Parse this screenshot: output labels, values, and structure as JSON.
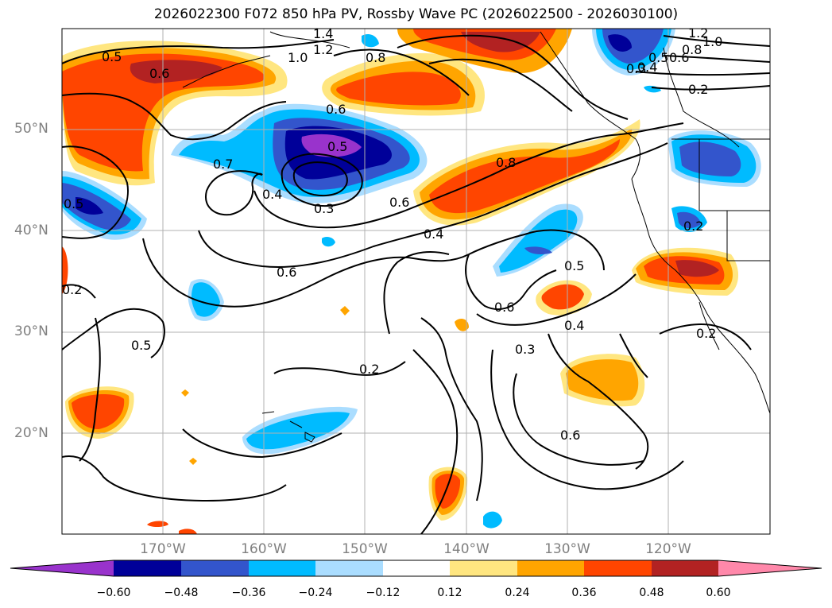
{
  "title": "2026022300 F072 850 hPa PV, Rossby Wave PC (2026022500 - 2026030100)",
  "lat_labels": [
    "50°N",
    "40°N",
    "30°N",
    "20°N"
  ],
  "lon_labels": [
    "170°W",
    "160°W",
    "150°W",
    "140°W",
    "130°W",
    "120°W"
  ],
  "colorbar": {
    "ticks": [
      "−0.60",
      "−0.48",
      "−0.36",
      "−0.24",
      "−0.12",
      "0.12",
      "0.24",
      "0.36",
      "0.48",
      "0.60"
    ],
    "colors": {
      "neg_extend": "#9933cc",
      "neg_060_048": "#000099",
      "neg_048_036": "#3355cc",
      "neg_036_024": "#00bbff",
      "neg_024_012": "#aaddff",
      "neutral": "#ffffff",
      "pos_012_024": "#ffe680",
      "pos_024_036": "#ffa500",
      "pos_036_048": "#ff4500",
      "pos_048_060": "#b22222",
      "pos_extend": "#ff88aa"
    }
  },
  "contour_labels": [
    "0.5",
    "0.6",
    "1.0",
    "1.4",
    "1.2",
    "0.8",
    "0.6",
    "1.2",
    "1.0",
    "0.8",
    "0.6",
    "0.5",
    "0.4",
    "0.3",
    "0.2",
    "0.7",
    "0.3",
    "0.4",
    "0.5",
    "0.6",
    "0.8",
    "0.6",
    "0.4",
    "0.6",
    "0.5",
    "0.6",
    "0.5",
    "0.4",
    "0.3",
    "0.2",
    "0.5",
    "0.2",
    "0.2",
    "0.2"
  ]
}
